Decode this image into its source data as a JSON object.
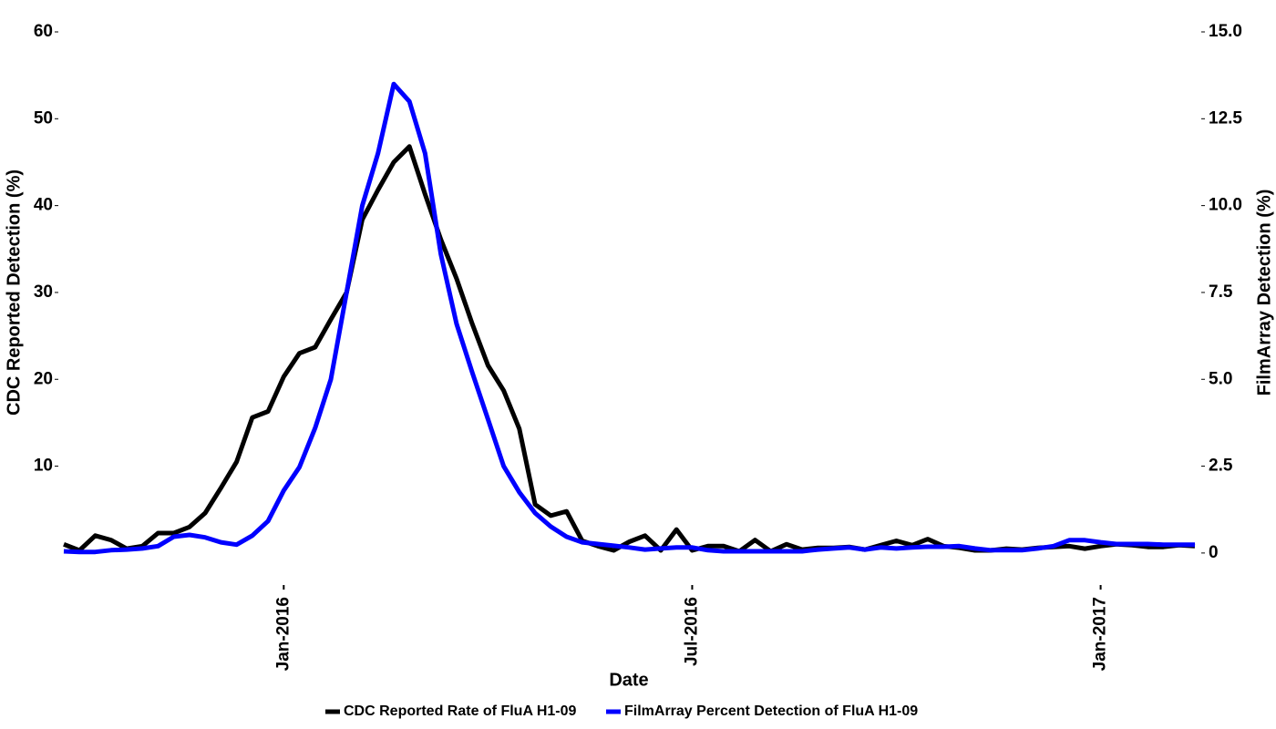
{
  "chart_data": {
    "type": "line",
    "x_label": "Date",
    "y_label": "CDC Reported Detection (%)",
    "y2_label": "FilmArray Detection (%)",
    "categories": [
      null,
      null,
      null,
      null,
      null,
      null,
      null,
      null,
      null,
      null,
      null,
      null,
      null,
      null,
      "Jan-2016",
      null,
      null,
      null,
      null,
      null,
      null,
      null,
      null,
      null,
      null,
      null,
      null,
      null,
      null,
      null,
      null,
      null,
      null,
      null,
      null,
      null,
      null,
      null,
      null,
      null,
      "Jul-2016",
      null,
      null,
      null,
      null,
      null,
      null,
      null,
      null,
      null,
      null,
      null,
      null,
      null,
      null,
      null,
      null,
      null,
      null,
      null,
      null,
      null,
      null,
      null,
      null,
      null,
      "Jan-2017",
      null,
      null,
      null,
      null,
      null,
      null
    ],
    "series": [
      {
        "name": "CDC Reported Rate of FluA H1-09",
        "color": "#000000",
        "axis": "y",
        "values": [
          1.0,
          0.3,
          2.0,
          1.5,
          0.5,
          0.8,
          2.3,
          2.3,
          3.0,
          4.6,
          7.5,
          10.5,
          15.6,
          16.3,
          20.3,
          23,
          23.7,
          26.9,
          30,
          38.4,
          41.8,
          45,
          46.8,
          41.3,
          36.1,
          31.6,
          26.4,
          21.6,
          18.7,
          14.3,
          5.6,
          4.3,
          4.8,
          1.4,
          0.8,
          0.3,
          1.3,
          2.0,
          0.3,
          2.7,
          0.3,
          0.8,
          0.8,
          0.2,
          1.5,
          0.2,
          1.0,
          0.4,
          0.6,
          0.6,
          0.7,
          0.4,
          0.9,
          1.4,
          0.9,
          1.6,
          0.8,
          0.6,
          0.3,
          0.3,
          0.5,
          0.4,
          0.6,
          0.7,
          0.8,
          0.5,
          0.8,
          1.0,
          0.9,
          0.7,
          0.7,
          0.9,
          0.8
        ]
      },
      {
        "name": "FilmArray Percent Detection of FluA H1-09",
        "color": "#0000ff",
        "axis": "y2",
        "values": [
          0.05,
          0.03,
          0.03,
          0.08,
          0.1,
          0.13,
          0.2,
          0.47,
          0.52,
          0.45,
          0.31,
          0.24,
          0.5,
          0.92,
          1.8,
          2.47,
          3.6,
          5.0,
          7.5,
          10.0,
          11.5,
          13.5,
          13.0,
          11.5,
          8.6,
          6.6,
          5.2,
          3.85,
          2.5,
          1.75,
          1.15,
          0.76,
          0.47,
          0.31,
          0.26,
          0.21,
          0.16,
          0.1,
          0.13,
          0.16,
          0.16,
          0.08,
          0.05,
          0.05,
          0.05,
          0.05,
          0.05,
          0.05,
          0.1,
          0.13,
          0.16,
          0.1,
          0.16,
          0.13,
          0.16,
          0.18,
          0.18,
          0.2,
          0.13,
          0.08,
          0.08,
          0.08,
          0.13,
          0.2,
          0.37,
          0.37,
          0.31,
          0.26,
          0.26,
          0.26,
          0.24,
          0.24,
          0.24
        ]
      }
    ],
    "ylim": [
      -4,
      60
    ],
    "yticks": [
      10,
      20,
      30,
      40,
      50,
      60
    ],
    "y2lim": [
      -1,
      15
    ],
    "y2ticks": [
      0,
      2.5,
      {
        "value": 5,
        "label": "5.0"
      },
      7.5,
      {
        "value": 10,
        "label": "10.0"
      },
      12.5,
      {
        "value": 15,
        "label": "15.0"
      }
    ],
    "legend": "bottom",
    "grid": false
  }
}
